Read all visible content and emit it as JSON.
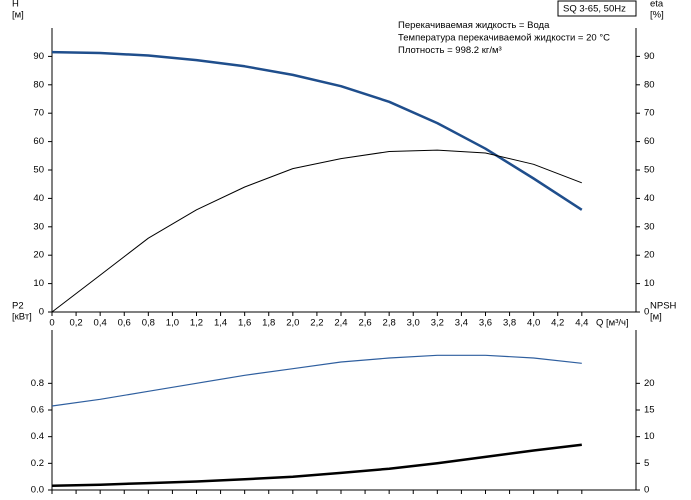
{
  "chart_data": [
    {
      "type": "line",
      "annotations": [
        "SQ 3-65, 50Hz",
        "Перекачиваемая жидкость = Вода",
        "Температура перекачиваемой жидкости = 20 °C",
        "Плотность = 998.2 кг/м³"
      ],
      "ylabel": [
        "H",
        "[м]"
      ],
      "y2label": [
        "eta",
        "[%]"
      ],
      "xlabel": "Q [м³/ч]",
      "xlim": [
        0,
        4.85
      ],
      "xticks": [
        0,
        {
          "value": 0.2,
          "label": "0,2"
        },
        {
          "value": 0.4,
          "label": "0,4"
        },
        {
          "value": 0.6,
          "label": "0,6"
        },
        {
          "value": 0.8,
          "label": "0,8"
        },
        {
          "value": 1.0,
          "label": "1,0"
        },
        {
          "value": 1.2,
          "label": "1,2"
        },
        {
          "value": 1.4,
          "label": "1,4"
        },
        {
          "value": 1.6,
          "label": "1,6"
        },
        {
          "value": 1.8,
          "label": "1,8"
        },
        {
          "value": 2.0,
          "label": "2,0"
        },
        {
          "value": 2.2,
          "label": "2,2"
        },
        {
          "value": 2.4,
          "label": "2,4"
        },
        {
          "value": 2.6,
          "label": "2,6"
        },
        {
          "value": 2.8,
          "label": "2,8"
        },
        {
          "value": 3.0,
          "label": "3,0"
        },
        {
          "value": 3.2,
          "label": "3,2"
        },
        {
          "value": 3.4,
          "label": "3,4"
        },
        {
          "value": 3.6,
          "label": "3,6"
        },
        {
          "value": 3.8,
          "label": "3,8"
        },
        {
          "value": 4.0,
          "label": "4,0"
        },
        {
          "value": 4.2,
          "label": "4,2"
        },
        {
          "value": 4.4,
          "label": "4,4"
        }
      ],
      "ylim": [
        0,
        100
      ],
      "yticks": [
        0,
        10,
        20,
        30,
        40,
        50,
        60,
        70,
        80,
        90
      ],
      "y2lim": [
        0,
        100
      ],
      "y2ticks": [
        0,
        10,
        20,
        30,
        40,
        50,
        60,
        70,
        80,
        90
      ],
      "x": [
        0,
        0.4,
        0.8,
        1.2,
        1.6,
        2.0,
        2.4,
        2.8,
        3.2,
        3.6,
        4.0,
        4.4
      ],
      "series": [
        {
          "color": "#1f4e8c",
          "width": 2.5,
          "values": [
            91.5,
            91.2,
            90.3,
            88.7,
            86.5,
            83.5,
            79.5,
            74,
            66.5,
            57.5,
            47,
            36
          ]
        },
        {
          "color": "#000000",
          "width": 1,
          "axis": "y2",
          "values": [
            0,
            13,
            26,
            36,
            44,
            50.5,
            54,
            56.5,
            57,
            56,
            52,
            45.5
          ]
        }
      ]
    },
    {
      "type": "line",
      "ylabel": [
        "P2",
        "[кВт]"
      ],
      "y2label": [
        "NPSH",
        "[м]"
      ],
      "xlim": [
        0,
        4.85
      ],
      "ylim": [
        0,
        1.2
      ],
      "yticks": [
        {
          "value": 0,
          "label": "0.0"
        },
        0.2,
        0.4,
        0.6,
        0.8
      ],
      "y2lim": [
        0,
        30
      ],
      "y2ticks": [
        0,
        5,
        10,
        15,
        20
      ],
      "x": [
        0,
        0.4,
        0.8,
        1.2,
        1.6,
        2.0,
        2.4,
        2.8,
        3.2,
        3.6,
        4.0,
        4.4
      ],
      "series": [
        {
          "color": "#2f5f9f",
          "width": 1.2,
          "values": [
            0.63,
            0.68,
            0.74,
            0.8,
            0.86,
            0.91,
            0.96,
            0.99,
            1.01,
            1.01,
            0.99,
            0.95
          ]
        },
        {
          "color": "#000000",
          "width": 2.5,
          "axis": "y2",
          "values": [
            0.8,
            1.0,
            1.3,
            1.6,
            2.0,
            2.5,
            3.2,
            4.0,
            5.0,
            6.2,
            7.4,
            8.5
          ]
        }
      ]
    }
  ]
}
